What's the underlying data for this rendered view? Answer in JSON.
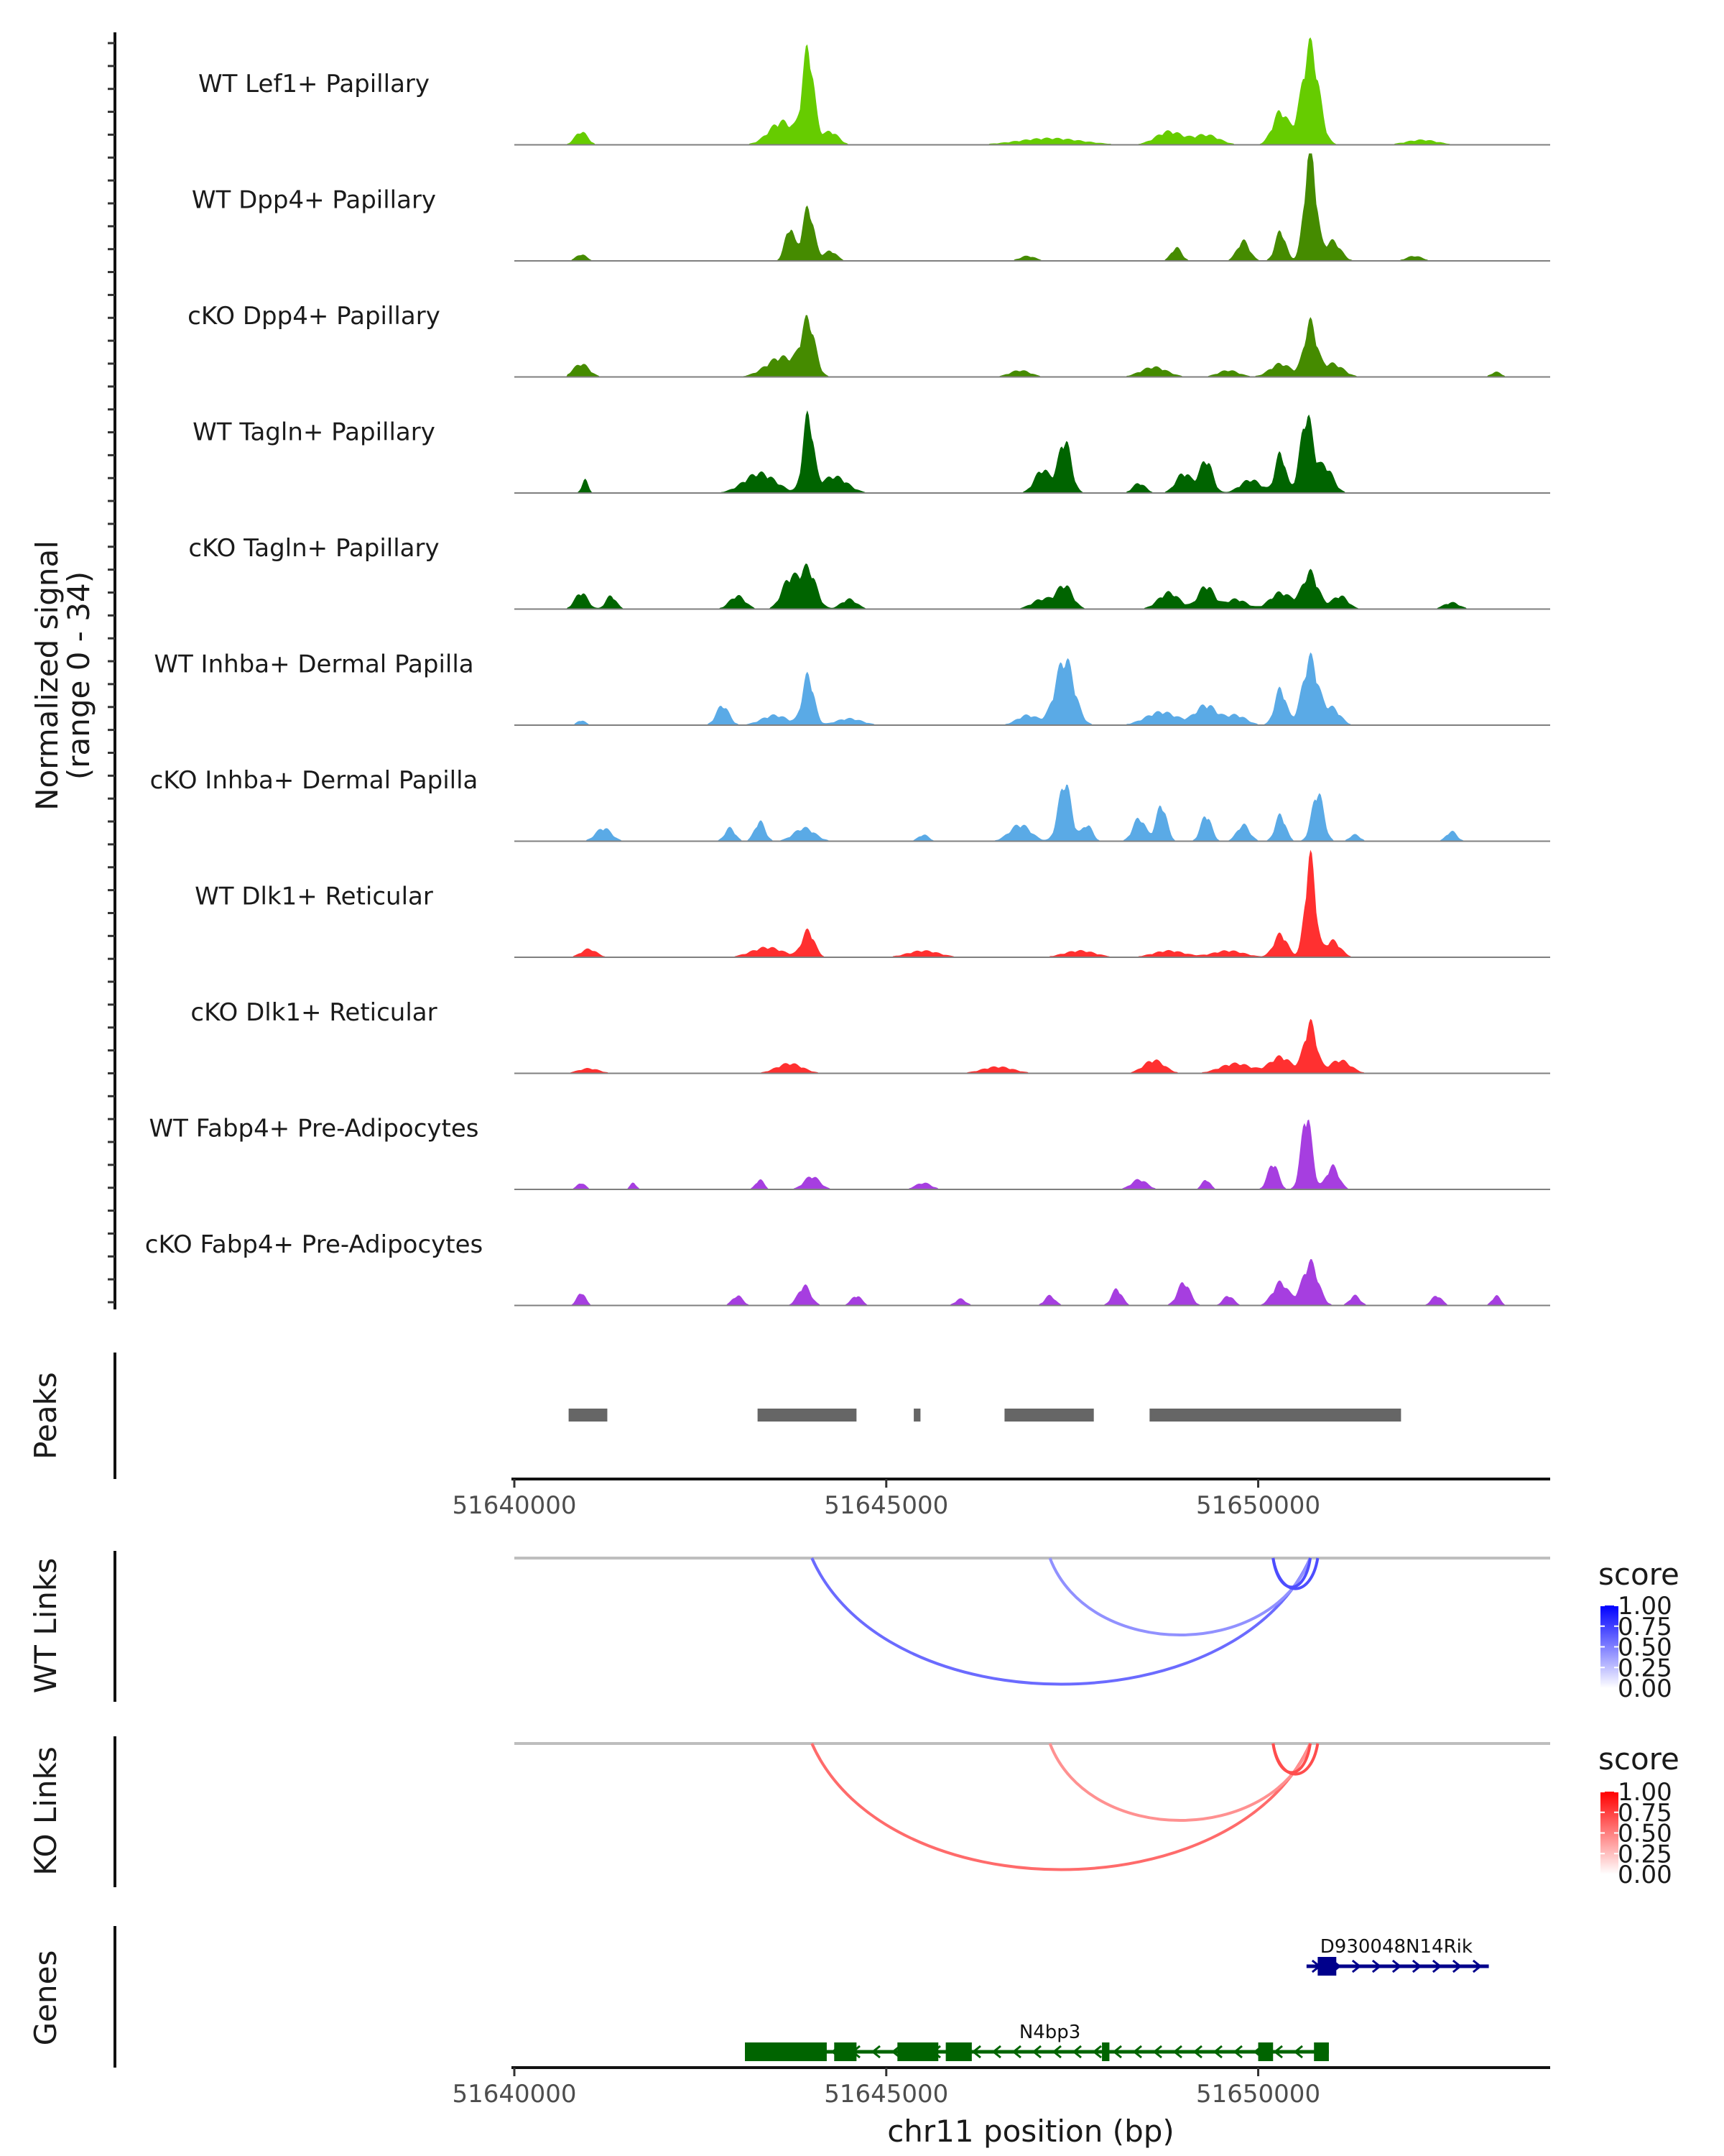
{
  "chart_data": {
    "type": "area",
    "title": "",
    "region": {
      "chrom": "chr11",
      "start": 51640000,
      "end": 51653925
    },
    "xlabel": "chr11 position (bp)",
    "x_ticks": [
      51640000,
      51645000,
      51650000
    ],
    "x_tick_labels": [
      "51640000",
      "51645000",
      "51650000"
    ],
    "coverage": {
      "ylabel_line1": "Normalized signal",
      "ylabel_line2": "(range 0 - 34)",
      "ylim": [
        0,
        34
      ],
      "tracks": [
        {
          "name": "WT Lef1+ Papillary",
          "color": "#66cc00",
          "peaks": [
            [
              51640900,
              4,
              120
            ],
            [
              51643600,
              7,
              250
            ],
            [
              51643950,
              28,
              110
            ],
            [
              51644250,
              4,
              150
            ],
            [
              51647200,
              2,
              600
            ],
            [
              51648800,
              4,
              250
            ],
            [
              51649300,
              3,
              250
            ],
            [
              51650300,
              10,
              150
            ],
            [
              51650700,
              30,
              160
            ],
            [
              51652200,
              1.5,
              300
            ]
          ]
        },
        {
          "name": "WT Dpp4+ Papillary",
          "color": "#458b00",
          "peaks": [
            [
              51640900,
              2,
              100
            ],
            [
              51643700,
              10,
              90
            ],
            [
              51643950,
              16,
              110
            ],
            [
              51644250,
              3,
              120
            ],
            [
              51646900,
              1.5,
              150
            ],
            [
              51648900,
              4,
              100
            ],
            [
              51649800,
              6,
              120
            ],
            [
              51650300,
              9,
              100
            ],
            [
              51650700,
              34,
              110
            ],
            [
              51651000,
              6,
              150
            ],
            [
              51652100,
              1.5,
              150
            ]
          ]
        },
        {
          "name": "cKO Dpp4+ Papillary",
          "color": "#458b00",
          "peaks": [
            [
              51640900,
              4,
              150
            ],
            [
              51643600,
              6,
              300
            ],
            [
              51643950,
              16,
              130
            ],
            [
              51646800,
              2,
              200
            ],
            [
              51648600,
              3,
              250
            ],
            [
              51649600,
              2,
              200
            ],
            [
              51650300,
              4,
              200
            ],
            [
              51650700,
              16,
              120
            ],
            [
              51651000,
              4,
              200
            ],
            [
              51653200,
              1.5,
              100
            ]
          ]
        },
        {
          "name": "WT Tagln+ Papillary",
          "color": "#006400",
          "peaks": [
            [
              51640950,
              4,
              60
            ],
            [
              51643300,
              6,
              300
            ],
            [
              51643950,
              23,
              100
            ],
            [
              51644300,
              5,
              250
            ],
            [
              51647100,
              7,
              150
            ],
            [
              51647400,
              16,
              120
            ],
            [
              51648400,
              3,
              120
            ],
            [
              51649000,
              6,
              150
            ],
            [
              51649300,
              10,
              120
            ],
            [
              51649900,
              4,
              200
            ],
            [
              51650300,
              12,
              100
            ],
            [
              51650650,
              23,
              120
            ],
            [
              51650900,
              8,
              150
            ]
          ]
        },
        {
          "name": "cKO Tagln+ Papillary",
          "color": "#006400",
          "peaks": [
            [
              51640900,
              5,
              120
            ],
            [
              51641300,
              4,
              100
            ],
            [
              51643000,
              4,
              150
            ],
            [
              51643700,
              9,
              150
            ],
            [
              51643950,
              12,
              150
            ],
            [
              51644500,
              3,
              150
            ],
            [
              51647100,
              3,
              200
            ],
            [
              51647400,
              7,
              150
            ],
            [
              51648800,
              5,
              200
            ],
            [
              51649300,
              7,
              150
            ],
            [
              51649700,
              3,
              200
            ],
            [
              51650300,
              5,
              200
            ],
            [
              51650700,
              11,
              150
            ],
            [
              51651100,
              4,
              150
            ],
            [
              51652600,
              2,
              150
            ]
          ]
        },
        {
          "name": "WT Inhba+ Dermal Papilla",
          "color": "#5aaae6",
          "peaks": [
            [
              51640900,
              1.5,
              80
            ],
            [
              51642800,
              6,
              120
            ],
            [
              51643500,
              3,
              250
            ],
            [
              51643950,
              15,
              110
            ],
            [
              51644500,
              2,
              250
            ],
            [
              51646900,
              3,
              200
            ],
            [
              51647400,
              20,
              180
            ],
            [
              51648700,
              4,
              300
            ],
            [
              51649300,
              6,
              200
            ],
            [
              51649700,
              3,
              200
            ],
            [
              51650300,
              11,
              110
            ],
            [
              51650700,
              20,
              150
            ],
            [
              51651000,
              5,
              150
            ]
          ]
        },
        {
          "name": "cKO Inhba+ Dermal Papilla",
          "color": "#5aaae6",
          "peaks": [
            [
              51641200,
              4,
              150
            ],
            [
              51642900,
              4,
              100
            ],
            [
              51643300,
              6,
              100
            ],
            [
              51643900,
              4,
              200
            ],
            [
              51645500,
              2,
              100
            ],
            [
              51646800,
              5,
              200
            ],
            [
              51647400,
              18,
              120
            ],
            [
              51647700,
              5,
              100
            ],
            [
              51648400,
              7,
              120
            ],
            [
              51648700,
              11,
              100
            ],
            [
              51649300,
              8,
              100
            ],
            [
              51649800,
              5,
              120
            ],
            [
              51650300,
              8,
              100
            ],
            [
              51650800,
              15,
              110
            ],
            [
              51651300,
              2,
              100
            ],
            [
              51652600,
              3,
              100
            ]
          ]
        },
        {
          "name": "WT Dlk1+ Reticular",
          "color": "#ff3030",
          "peaks": [
            [
              51641000,
              2.5,
              150
            ],
            [
              51643400,
              3,
              300
            ],
            [
              51643950,
              8,
              120
            ],
            [
              51645500,
              2,
              300
            ],
            [
              51647600,
              2,
              300
            ],
            [
              51648800,
              2,
              300
            ],
            [
              51649600,
              2,
              300
            ],
            [
              51650300,
              7,
              130
            ],
            [
              51650700,
              30,
              100
            ],
            [
              51651000,
              5,
              150
            ]
          ]
        },
        {
          "name": "cKO Dlk1+ Reticular",
          "color": "#ff3030",
          "peaks": [
            [
              51641000,
              1.5,
              200
            ],
            [
              51643700,
              3,
              250
            ],
            [
              51646500,
              2,
              300
            ],
            [
              51648600,
              4,
              200
            ],
            [
              51649700,
              3,
              300
            ],
            [
              51650300,
              5,
              200
            ],
            [
              51650700,
              15,
              120
            ],
            [
              51651100,
              4,
              200
            ]
          ]
        },
        {
          "name": "WT Fabp4+ Pre-Adipocytes",
          "color": "#a63ee0",
          "peaks": [
            [
              51640900,
              2,
              80
            ],
            [
              51641600,
              2,
              60
            ],
            [
              51643300,
              3,
              80
            ],
            [
              51644000,
              4,
              150
            ],
            [
              51645500,
              2,
              150
            ],
            [
              51648400,
              3,
              150
            ],
            [
              51649300,
              3,
              80
            ],
            [
              51650200,
              8,
              100
            ],
            [
              51650650,
              23,
              100
            ],
            [
              51651000,
              7,
              120
            ]
          ]
        },
        {
          "name": "cKO Fabp4+ Pre-Adipocytes",
          "color": "#a63ee0",
          "peaks": [
            [
              51640900,
              4,
              80
            ],
            [
              51643000,
              3,
              100
            ],
            [
              51643900,
              6,
              120
            ],
            [
              51644600,
              3,
              100
            ],
            [
              51646000,
              2,
              100
            ],
            [
              51647200,
              3,
              100
            ],
            [
              51648100,
              5,
              100
            ],
            [
              51649000,
              7,
              120
            ],
            [
              51649600,
              3,
              100
            ],
            [
              51650300,
              7,
              150
            ],
            [
              51650700,
              13,
              150
            ],
            [
              51651300,
              3,
              100
            ],
            [
              51652400,
              3,
              100
            ],
            [
              51653200,
              3,
              80
            ]
          ]
        }
      ]
    },
    "peaks_track": {
      "label": "Peaks",
      "color": "#666666",
      "intervals": [
        [
          51640730,
          51641250
        ],
        [
          51643270,
          51644600
        ],
        [
          51645370,
          51645460
        ],
        [
          51646590,
          51647790
        ],
        [
          51648540,
          51651920
        ]
      ]
    },
    "wt_links": {
      "label": "WT Links",
      "legend_title": "score",
      "legend_ticks": [
        "1.00",
        "0.75",
        "0.50",
        "0.25",
        "0.00"
      ],
      "color_high": "#0000ff",
      "color_low": "#ffffff",
      "links": [
        {
          "start": 51644000,
          "end": 51650700,
          "score": 0.55
        },
        {
          "start": 51647200,
          "end": 51650700,
          "score": 0.3
        },
        {
          "start": 51650200,
          "end": 51650700,
          "score": 0.75
        },
        {
          "start": 51650200,
          "end": 51650800,
          "score": 0.75
        }
      ]
    },
    "ko_links": {
      "label": "KO Links",
      "legend_title": "score",
      "legend_ticks": [
        "1.00",
        "0.75",
        "0.50",
        "0.25",
        "0.00"
      ],
      "color_high": "#ff0000",
      "color_low": "#ffffff",
      "links": [
        {
          "start": 51644000,
          "end": 51650700,
          "score": 0.55
        },
        {
          "start": 51647200,
          "end": 51650700,
          "score": 0.3
        },
        {
          "start": 51650200,
          "end": 51650700,
          "score": 0.75
        },
        {
          "start": 51650200,
          "end": 51650800,
          "score": 0.75
        }
      ]
    },
    "genes_track": {
      "label": "Genes",
      "genes": [
        {
          "name": "D930048N14Rik",
          "strand": "+",
          "color": "#00008b",
          "start": 51650650,
          "end": 51653100,
          "exons": [
            [
              51650800,
              51651050
            ]
          ]
        },
        {
          "name": "N4bp3",
          "strand": "-",
          "color": "#006400",
          "start": 51643100,
          "end": 51650950,
          "exons": [
            [
              51643100,
              51644200
            ],
            [
              51644300,
              51644600
            ],
            [
              51645150,
              51645700
            ],
            [
              51645800,
              51646150
            ],
            [
              51647900,
              51648000
            ],
            [
              51650000,
              51650200
            ],
            [
              51650750,
              51650950
            ]
          ]
        }
      ]
    }
  }
}
